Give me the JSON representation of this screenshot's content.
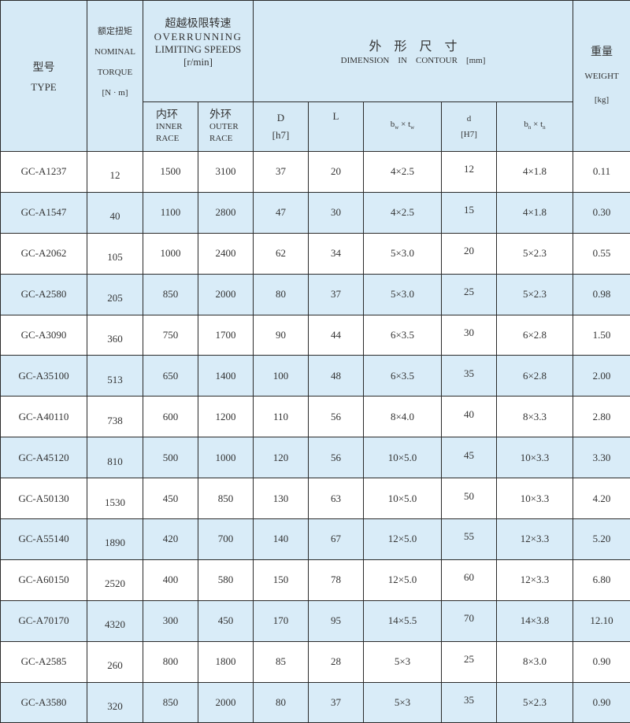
{
  "header": {
    "type": {
      "cn": "型号",
      "en": "TYPE"
    },
    "torque": {
      "cn": "额定扭矩",
      "en1": "NOMINAL",
      "en2": "TORQUE",
      "unit": "[N · m]"
    },
    "speeds": {
      "cn": "超越极限转速",
      "en1": "OVERRUNNING",
      "en2": "LIMITING SPEEDS",
      "unit": "[r/min]",
      "inner": {
        "cn": "内环",
        "en1": "INNER",
        "en2": "RACE"
      },
      "outer": {
        "cn": "外环",
        "en1": "OUTER",
        "en2": "RACE"
      }
    },
    "dimension": {
      "cn": "外　形　尺　寸",
      "en": "DIMENSION　IN　CONTOUR　[mm]",
      "D": "D",
      "D_tol": "[h7]",
      "L": "L",
      "bw": "b",
      "bw_sub": "w",
      "tw": "t",
      "tw_sub": "w",
      "times": " × ",
      "d": "d",
      "d_tol": "[H7]",
      "bn": "b",
      "bn_sub": "n",
      "tn": "t",
      "tn_sub": "n"
    },
    "weight": {
      "cn": "重量",
      "en": "WEIGHT",
      "unit": "[kg]"
    }
  },
  "rows": [
    [
      "GC-A1237",
      "12",
      "1500",
      "3100",
      "37",
      "20",
      "4×2.5",
      "12",
      "4×1.8",
      "0.11"
    ],
    [
      "GC-A1547",
      "40",
      "1100",
      "2800",
      "47",
      "30",
      "4×2.5",
      "15",
      "4×1.8",
      "0.30"
    ],
    [
      "GC-A2062",
      "105",
      "1000",
      "2400",
      "62",
      "34",
      "5×3.0",
      "20",
      "5×2.3",
      "0.55"
    ],
    [
      "GC-A2580",
      "205",
      "850",
      "2000",
      "80",
      "37",
      "5×3.0",
      "25",
      "5×2.3",
      "0.98"
    ],
    [
      "GC-A3090",
      "360",
      "750",
      "1700",
      "90",
      "44",
      "6×3.5",
      "30",
      "6×2.8",
      "1.50"
    ],
    [
      "GC-A35100",
      "513",
      "650",
      "1400",
      "100",
      "48",
      "6×3.5",
      "35",
      "6×2.8",
      "2.00"
    ],
    [
      "GC-A40110",
      "738",
      "600",
      "1200",
      "110",
      "56",
      "8×4.0",
      "40",
      "8×3.3",
      "2.80"
    ],
    [
      "GC-A45120",
      "810",
      "500",
      "1000",
      "120",
      "56",
      "10×5.0",
      "45",
      "10×3.3",
      "3.30"
    ],
    [
      "GC-A50130",
      "1530",
      "450",
      "850",
      "130",
      "63",
      "10×5.0",
      "50",
      "10×3.3",
      "4.20"
    ],
    [
      "GC-A55140",
      "1890",
      "420",
      "700",
      "140",
      "67",
      "12×5.0",
      "55",
      "12×3.3",
      "5.20"
    ],
    [
      "GC-A60150",
      "2520",
      "400",
      "580",
      "150",
      "78",
      "12×5.0",
      "60",
      "12×3.3",
      "6.80"
    ],
    [
      "GC-A70170",
      "4320",
      "300",
      "450",
      "170",
      "95",
      "14×5.5",
      "70",
      "14×3.8",
      "12.10"
    ],
    [
      "GC-A2585",
      "260",
      "800",
      "1800",
      "85",
      "28",
      "5×3",
      "25",
      "8×3.0",
      "0.90"
    ],
    [
      "GC-A3580",
      "320",
      "850",
      "2000",
      "80",
      "37",
      "5×3",
      "35",
      "5×2.3",
      "0.90"
    ]
  ]
}
